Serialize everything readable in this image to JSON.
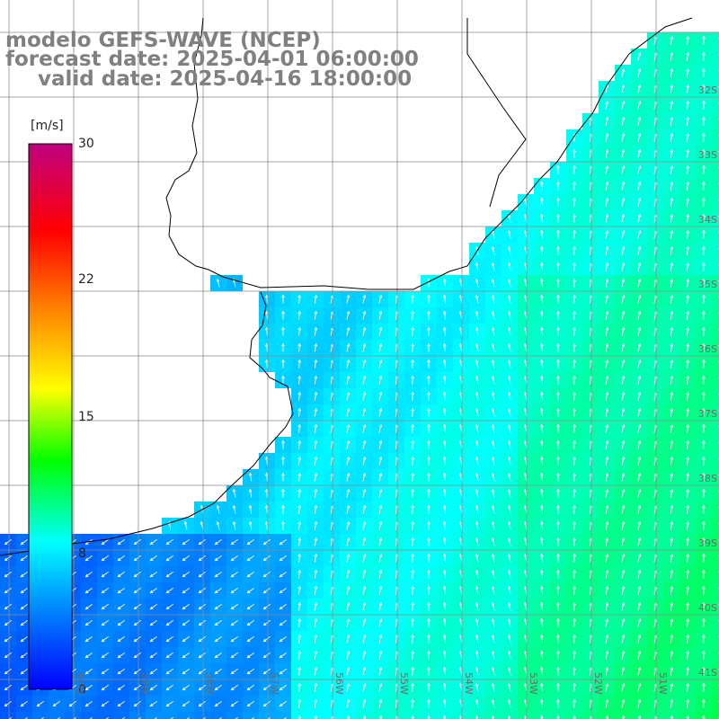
{
  "title": {
    "line1": "modelo GEFS-WAVE (NCEP)",
    "line2": "forecast date: 2025-04-01 06:00:00",
    "line3": "valid date: 2025-04-16 18:00:00"
  },
  "colorbar": {
    "unit": "[m/s]",
    "ticks": [
      "30",
      "22",
      "15",
      "8",
      "0"
    ],
    "colors": [
      "#0000ff",
      "#00aaff",
      "#00ffff",
      "#00ff00",
      "#ffff00",
      "#ff8000",
      "#ff0000",
      "#c00080"
    ]
  },
  "grid": {
    "lat_labels": [
      "32S",
      "33S",
      "34S",
      "35S",
      "36S",
      "37S",
      "38S",
      "39S",
      "40S",
      "41S"
    ],
    "lon_labels": [
      "60W",
      "59W",
      "58W",
      "57W",
      "56W",
      "55W",
      "54W",
      "53W",
      "52W",
      "51W"
    ]
  },
  "map": {
    "region": "Rio de la Plata / Uruguay / South Atlantic",
    "field": "wind speed",
    "colors": {
      "land": "#ffffff",
      "coast": "#000000",
      "grid": "#808080",
      "arrow": "#ffffff"
    }
  }
}
